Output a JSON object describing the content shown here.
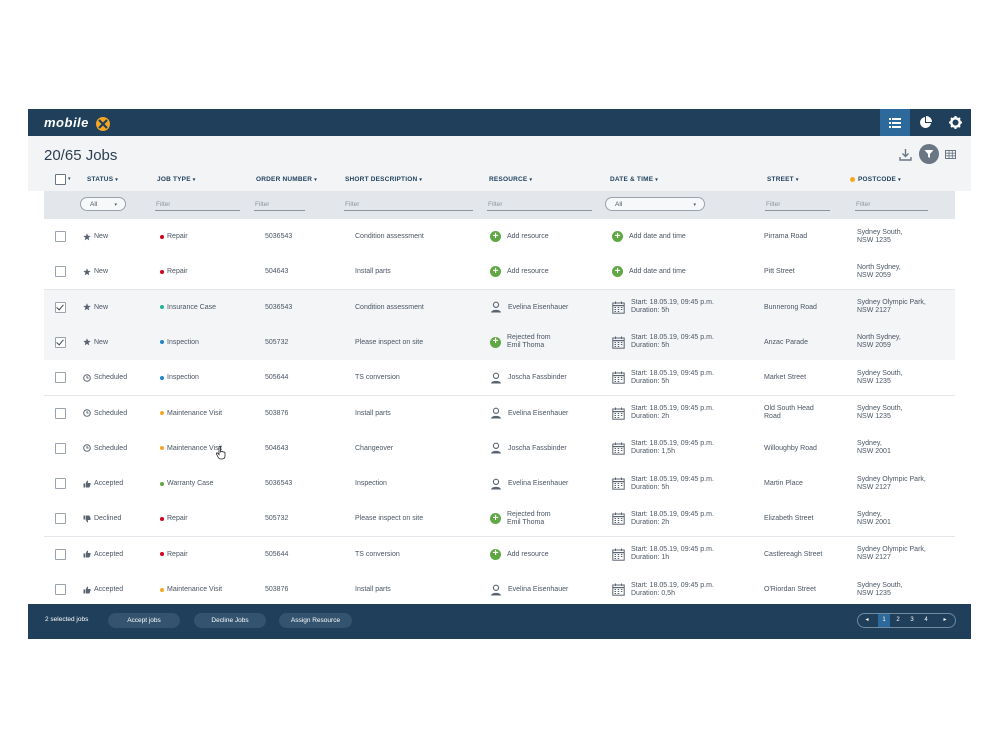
{
  "app": {
    "logo_text": "mobile",
    "title": "20/65 Jobs"
  },
  "toolbar": {
    "icons": [
      "list-view-icon",
      "pie-chart-icon",
      "gear-icon"
    ]
  },
  "header_icons": [
    "download-icon",
    "filter-icon",
    "table-view-icon"
  ],
  "columns": {
    "status": "STATUS",
    "job_type": "JOB TYPE",
    "order_number": "ORDER NUMBER",
    "short_description": "SHORT DESCRIPTION",
    "resource": "RESOURCE",
    "date_time": "DATE & TIME",
    "street": "STREET",
    "postcode": "POSTCODE"
  },
  "filters": {
    "status": "All",
    "job_type": "Filter",
    "order_number": "Filter",
    "short_description": "Filter",
    "resource": "Filter",
    "date_time": "All",
    "street": "Filter",
    "postcode": "Filter"
  },
  "colors": {
    "Repair": "#d0021b",
    "Insurance Case": "#25b59a",
    "Inspection": "#1e88c7",
    "Maintenance Visit": "#f5a623",
    "Warranty Case": "#5fa844"
  },
  "rows": [
    {
      "checked": false,
      "status": "New",
      "status_icon": "star-icon",
      "job_type": "Repair",
      "order": "5036543",
      "desc": "Condition assessment",
      "resource_kind": "add",
      "resource": "Add resource",
      "resource2": "",
      "date_kind": "add",
      "date1": "Add date and time",
      "date2": "",
      "street": "Pirrama Road",
      "street2": "",
      "postcode1": "Sydney South,",
      "postcode2": "NSW 1235"
    },
    {
      "checked": false,
      "status": "New",
      "status_icon": "star-icon",
      "job_type": "Repair",
      "order": "504643",
      "desc": "Install parts",
      "resource_kind": "add",
      "resource": "Add resource",
      "resource2": "",
      "date_kind": "add",
      "date1": "Add date and time",
      "date2": "",
      "street": "Pitt Street",
      "street2": "",
      "postcode1": "North Sydney,",
      "postcode2": "NSW 2059"
    },
    {
      "checked": true,
      "status": "New",
      "status_icon": "star-icon",
      "job_type": "Insurance Case",
      "order": "5036543",
      "desc": "Condition assessment",
      "resource_kind": "person",
      "resource": "Evelina Eisenhauer",
      "resource2": "",
      "date_kind": "cal",
      "date1": "Start: 18.05.19, 09:45 p.m.",
      "date2": "Duration: 5h",
      "street": "Bunnerong Road",
      "street2": "",
      "postcode1": "Sydney Olympic Park,",
      "postcode2": "NSW 2127"
    },
    {
      "checked": true,
      "status": "New",
      "status_icon": "star-icon",
      "job_type": "Inspection",
      "order": "505732",
      "desc": "Please inspect on site",
      "resource_kind": "add",
      "resource": "Rejected from",
      "resource2": "Emil Thoma",
      "date_kind": "cal",
      "date1": "Start: 18.05.19, 09:45 p.m.",
      "date2": "Duration: 5h",
      "street": "Anzac Parade",
      "street2": "",
      "postcode1": "North Sydney,",
      "postcode2": "NSW 2059"
    },
    {
      "checked": false,
      "status": "Scheduled",
      "status_icon": "clock-icon",
      "job_type": "Inspection",
      "order": "505644",
      "desc": "TS conversion",
      "resource_kind": "person",
      "resource": "Joscha Fassbinder",
      "resource2": "",
      "date_kind": "cal",
      "date1": "Start: 18.05.19, 09:45 p.m.",
      "date2": "Duration: 5h",
      "street": "Market Street",
      "street2": "",
      "postcode1": "Sydney South,",
      "postcode2": "NSW 1235"
    },
    {
      "checked": false,
      "status": "Scheduled",
      "status_icon": "clock-icon",
      "job_type": "Maintenance Visit",
      "order": "503876",
      "desc": "Install parts",
      "resource_kind": "person",
      "resource": "Evelina Eisenhauer",
      "resource2": "",
      "date_kind": "cal",
      "date1": "Start: 18.05.19, 09:45 p.m.",
      "date2": "Duration: 2h",
      "street": "Old South Head",
      "street2": "Road",
      "postcode1": "Sydney South,",
      "postcode2": "NSW 1235"
    },
    {
      "checked": false,
      "status": "Scheduled",
      "status_icon": "clock-icon",
      "job_type": "Maintenance Visit",
      "order": "504643",
      "desc": "Changeover",
      "resource_kind": "person",
      "resource": "Joscha Fassbinder",
      "resource2": "",
      "date_kind": "cal",
      "date1": "Start: 18.05.19, 09:45 p.m.",
      "date2": "Duration: 1,5h",
      "street": "Willoughby Road",
      "street2": "",
      "postcode1": "Sydney,",
      "postcode2": "NSW 2001"
    },
    {
      "checked": false,
      "status": "Accepted",
      "status_icon": "thumbs-up-icon",
      "job_type": "Warranty Case",
      "order": "5036543",
      "desc": "Inspection",
      "resource_kind": "person",
      "resource": "Evelina Eisenhauer",
      "resource2": "",
      "date_kind": "cal",
      "date1": "Start: 18.05.19, 09:45 p.m.",
      "date2": "Duration: 5h",
      "street": "Martin Place",
      "street2": "",
      "postcode1": "Sydney Olympic Park,",
      "postcode2": "NSW 2127"
    },
    {
      "checked": false,
      "status": "Declined",
      "status_icon": "thumbs-down-icon",
      "job_type": "Repair",
      "order": "505732",
      "desc": "Please inspect on site",
      "resource_kind": "add",
      "resource": "Rejected from",
      "resource2": "Emil Thoma",
      "date_kind": "cal",
      "date1": "Start: 18.05.19, 09:45 p.m.",
      "date2": "Duration: 2h",
      "street": "Elizabeth Street",
      "street2": "",
      "postcode1": "Sydney,",
      "postcode2": "NSW 2001"
    },
    {
      "checked": false,
      "status": "Accepted",
      "status_icon": "thumbs-up-icon",
      "job_type": "Repair",
      "order": "505644",
      "desc": "TS conversion",
      "resource_kind": "add",
      "resource": "Add resource",
      "resource2": "",
      "date_kind": "cal",
      "date1": "Start: 18.05.19, 09:45 p.m.",
      "date2": "Duration: 1h",
      "street": "Castlereagh Street",
      "street2": "",
      "postcode1": "Sydney Olympic Park,",
      "postcode2": "NSW 2127"
    },
    {
      "checked": false,
      "status": "Accepted",
      "status_icon": "thumbs-up-icon",
      "job_type": "Maintenance Visit",
      "order": "503876",
      "desc": "Install parts",
      "resource_kind": "person",
      "resource": "Evelina Eisenhauer",
      "resource2": "",
      "date_kind": "cal",
      "date1": "Start: 18.05.19, 09:45 p.m.",
      "date2": "Duration: 0,5h",
      "street": "O'Riordan Street",
      "street2": "",
      "postcode1": "Sydney South,",
      "postcode2": "NSW 1235"
    }
  ],
  "footer": {
    "selected_text": "2 selected jobs",
    "accept_label": "Accept jobs",
    "decline_label": "Decline Jobs",
    "assign_label": "Assign Resource",
    "pages": [
      "1",
      "2",
      "3",
      "4"
    ],
    "current_page": "1"
  }
}
